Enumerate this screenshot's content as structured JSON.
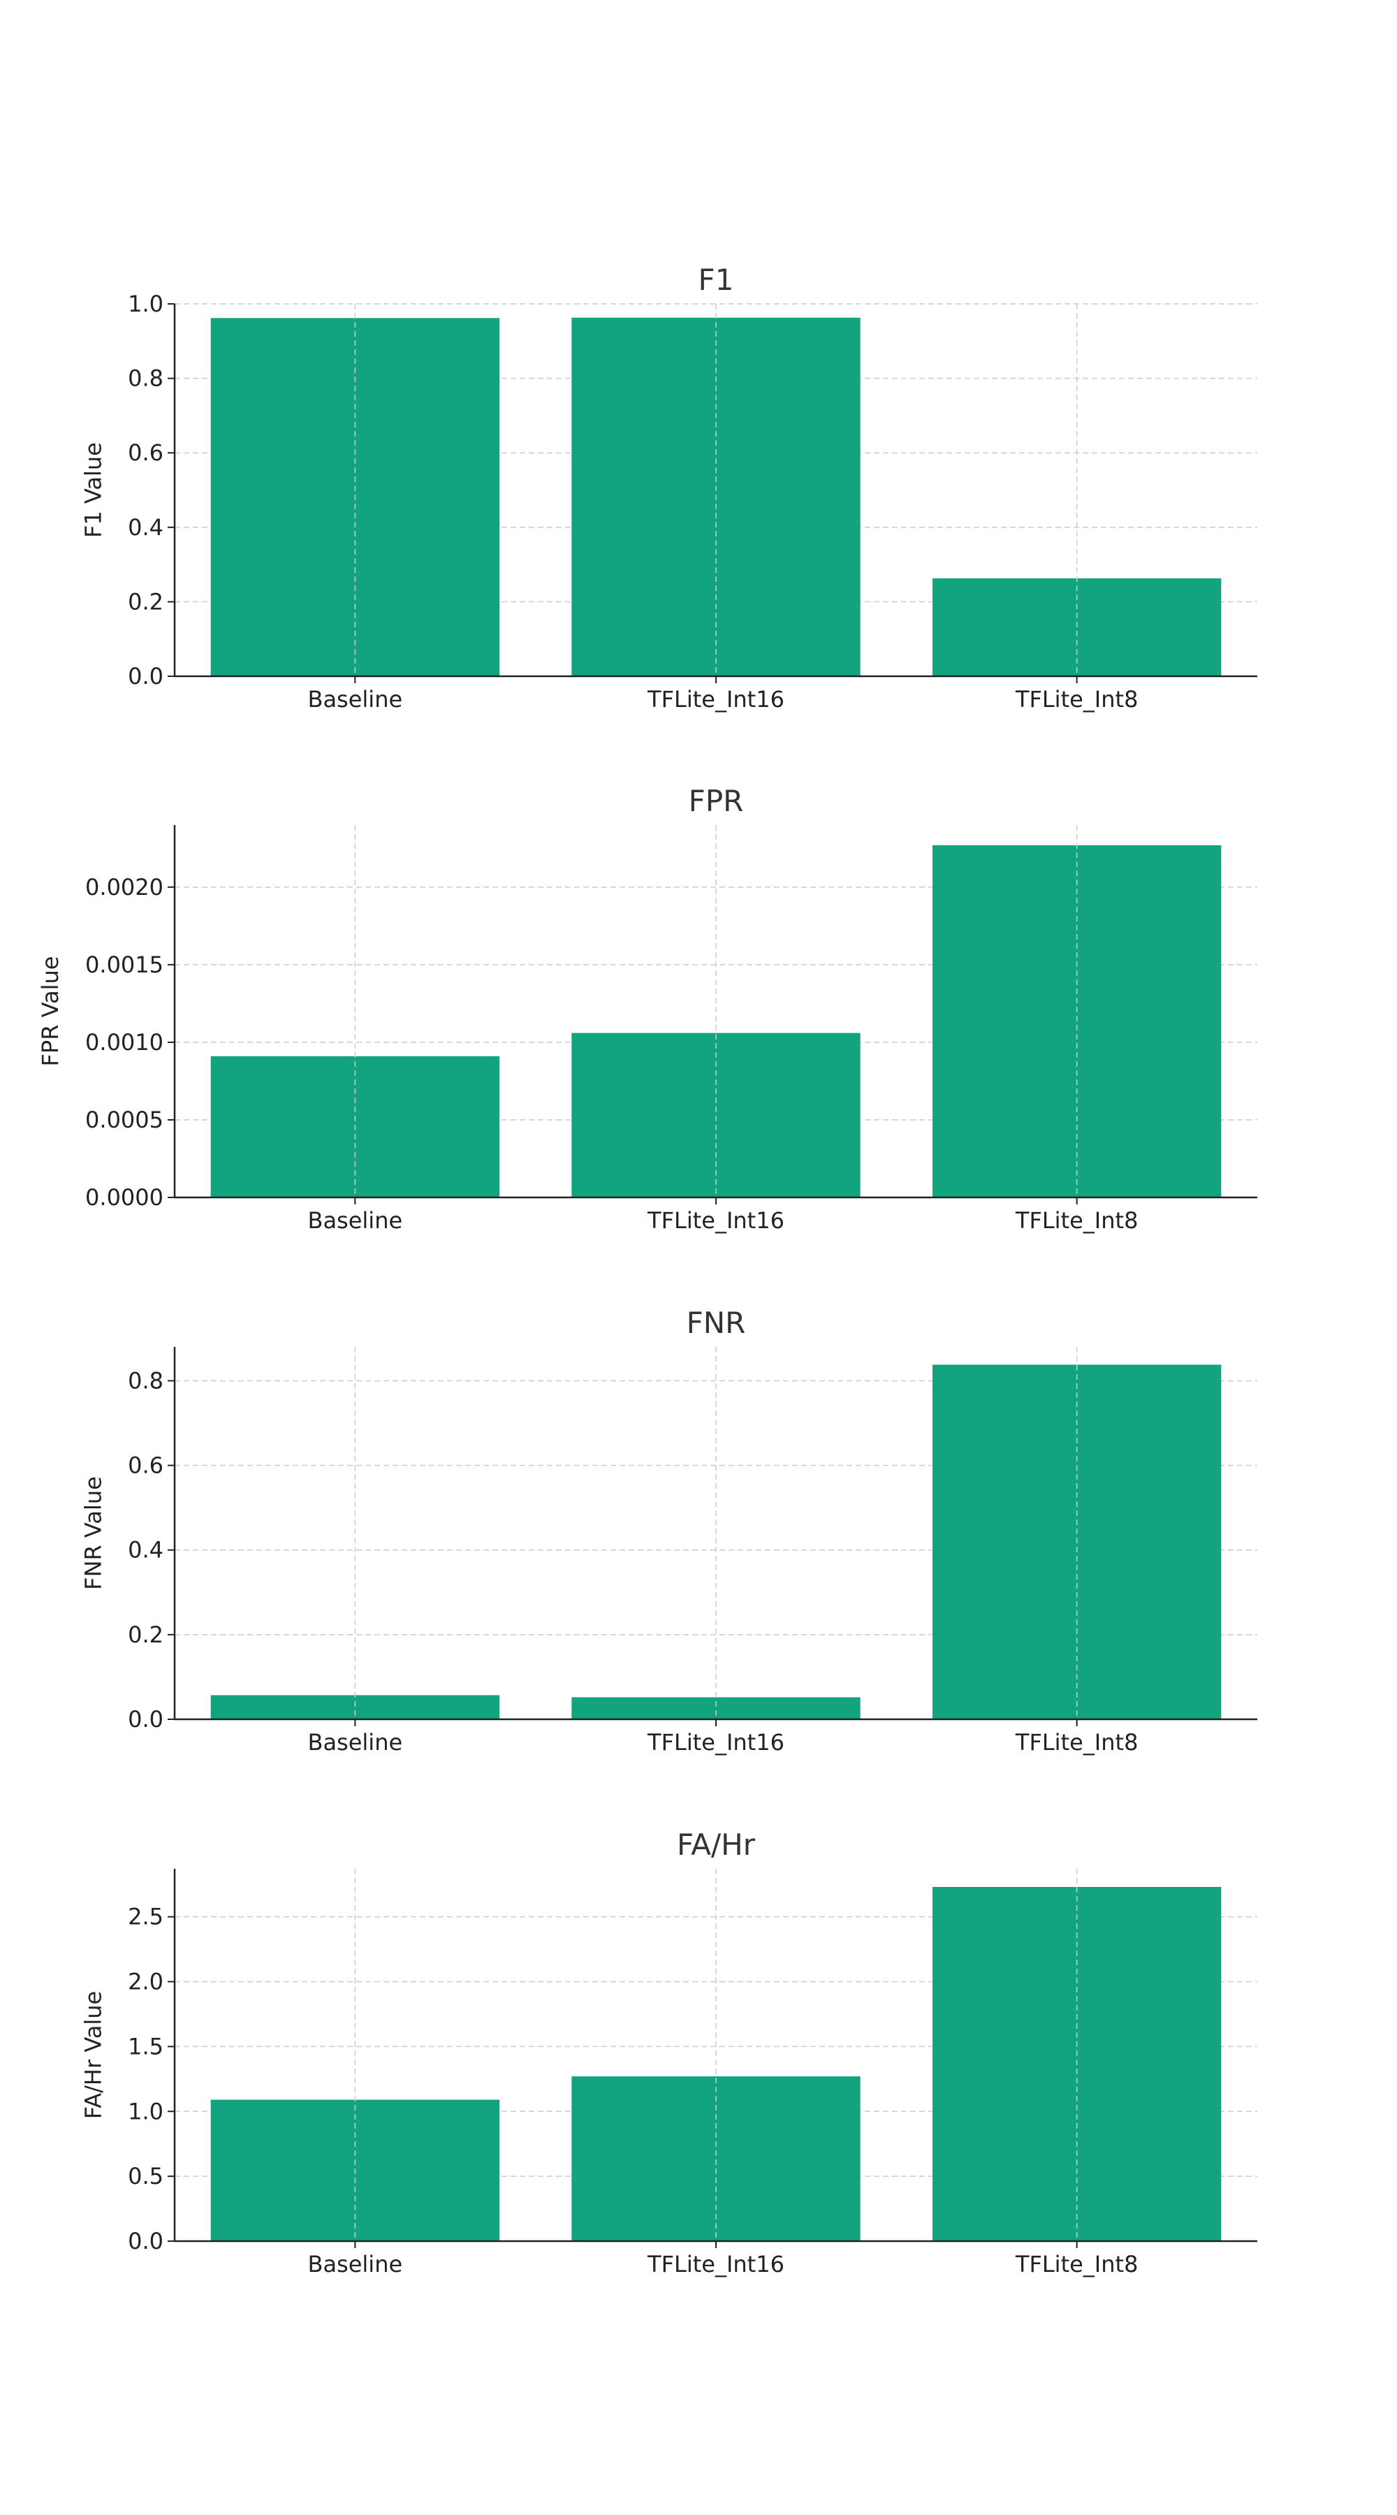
{
  "chart_data": [
    {
      "type": "bar",
      "title": "F1",
      "xlabel": "",
      "ylabel": "F1 Value",
      "categories": [
        "Baseline",
        "TFLite_Int16",
        "TFLite_Int8"
      ],
      "values": [
        0.962,
        0.963,
        0.263
      ],
      "ylim": [
        0,
        1.0
      ],
      "yticks": [
        0.0,
        0.2,
        0.4,
        0.6,
        0.8,
        1.0
      ],
      "ytick_labels": [
        "0.0",
        "0.2",
        "0.4",
        "0.6",
        "0.8",
        "1.0"
      ],
      "grid": true,
      "color": "#12a47e"
    },
    {
      "type": "bar",
      "title": "FPR",
      "xlabel": "",
      "ylabel": "FPR Value",
      "categories": [
        "Baseline",
        "TFLite_Int16",
        "TFLite_Int8"
      ],
      "values": [
        0.00091,
        0.00106,
        0.00227
      ],
      "ylim": [
        0,
        0.0024
      ],
      "yticks": [
        0.0,
        0.0005,
        0.001,
        0.0015,
        0.002
      ],
      "ytick_labels": [
        "0.0000",
        "0.0005",
        "0.0010",
        "0.0015",
        "0.0020"
      ],
      "grid": true,
      "color": "#12a47e"
    },
    {
      "type": "bar",
      "title": "FNR",
      "xlabel": "",
      "ylabel": "FNR Value",
      "categories": [
        "Baseline",
        "TFLite_Int16",
        "TFLite_Int8"
      ],
      "values": [
        0.057,
        0.052,
        0.838
      ],
      "ylim": [
        0,
        0.88
      ],
      "yticks": [
        0.0,
        0.2,
        0.4,
        0.6,
        0.8
      ],
      "ytick_labels": [
        "0.0",
        "0.2",
        "0.4",
        "0.6",
        "0.8"
      ],
      "grid": true,
      "color": "#12a47e"
    },
    {
      "type": "bar",
      "title": "FA/Hr",
      "xlabel": "",
      "ylabel": "FA/Hr Value",
      "categories": [
        "Baseline",
        "TFLite_Int16",
        "TFLite_Int8"
      ],
      "values": [
        1.09,
        1.27,
        2.73
      ],
      "ylim": [
        0,
        2.87
      ],
      "yticks": [
        0.0,
        0.5,
        1.0,
        1.5,
        2.0,
        2.5
      ],
      "ytick_labels": [
        "0.0",
        "0.5",
        "1.0",
        "1.5",
        "2.0",
        "2.5"
      ],
      "grid": true,
      "color": "#12a47e"
    }
  ]
}
